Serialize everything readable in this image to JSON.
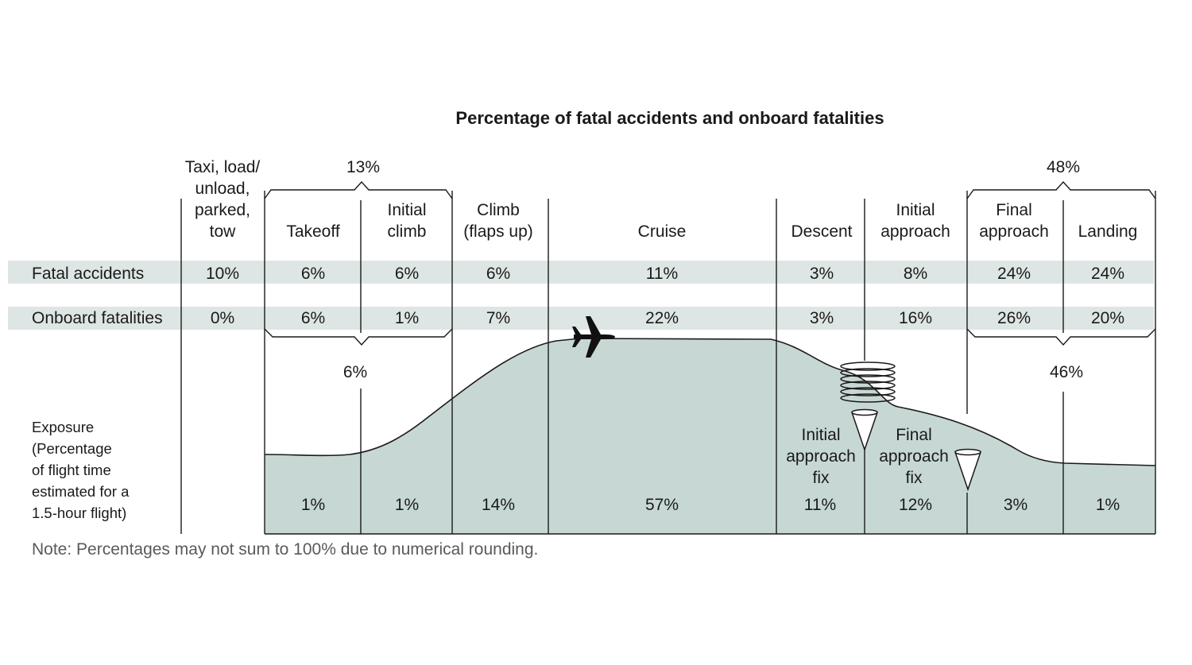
{
  "chart_data": {
    "type": "table",
    "title": "Percentage of fatal accidents and onboard fatalities",
    "phases": [
      {
        "name": [
          "Taxi, load/",
          "unload,",
          "parked,",
          "tow"
        ],
        "fatal_accidents": "10%",
        "onboard_fatalities": "0%",
        "exposure": ""
      },
      {
        "name": [
          "Takeoff"
        ],
        "fatal_accidents": "6%",
        "onboard_fatalities": "6%",
        "exposure": "1%"
      },
      {
        "name": [
          "Initial",
          "climb"
        ],
        "fatal_accidents": "6%",
        "onboard_fatalities": "1%",
        "exposure": "1%"
      },
      {
        "name": [
          "Climb",
          "(flaps up)"
        ],
        "fatal_accidents": "6%",
        "onboard_fatalities": "7%",
        "exposure": "14%"
      },
      {
        "name": [
          "Cruise"
        ],
        "fatal_accidents": "11%",
        "onboard_fatalities": "22%",
        "exposure": "57%"
      },
      {
        "name": [
          "Descent"
        ],
        "fatal_accidents": "3%",
        "onboard_fatalities": "3%",
        "exposure": "11%"
      },
      {
        "name": [
          "Initial",
          "approach"
        ],
        "fatal_accidents": "8%",
        "onboard_fatalities": "16%",
        "exposure": "12%"
      },
      {
        "name": [
          "Final",
          "approach"
        ],
        "fatal_accidents": "24%",
        "onboard_fatalities": "26%",
        "exposure": "3%"
      },
      {
        "name": [
          "Landing"
        ],
        "fatal_accidents": "24%",
        "onboard_fatalities": "20%",
        "exposure": "1%"
      }
    ],
    "row_labels": {
      "fatal_accidents": "Fatal accidents",
      "onboard_fatalities": "Onboard fatalities",
      "exposure": [
        "Exposure",
        "(Percentage",
        "of flight time",
        "estimated for a",
        "1.5-hour flight)"
      ]
    },
    "groups": {
      "takeoff_climb_accidents": "13%",
      "takeoff_climb_fatalities": "6%",
      "approach_landing_accidents": "48%",
      "approach_landing_fatalities": "46%"
    },
    "annotations": {
      "initial_approach_fix": [
        "Initial",
        "approach",
        "fix"
      ],
      "final_approach_fix": [
        "Final",
        "approach",
        "fix"
      ]
    },
    "note": "Note: Percentages may not sum to 100% due to numerical rounding.",
    "colors": {
      "band": "#dde6e4",
      "exposure_fill": "#c7d8d4",
      "line": "#1a1a1a"
    }
  }
}
